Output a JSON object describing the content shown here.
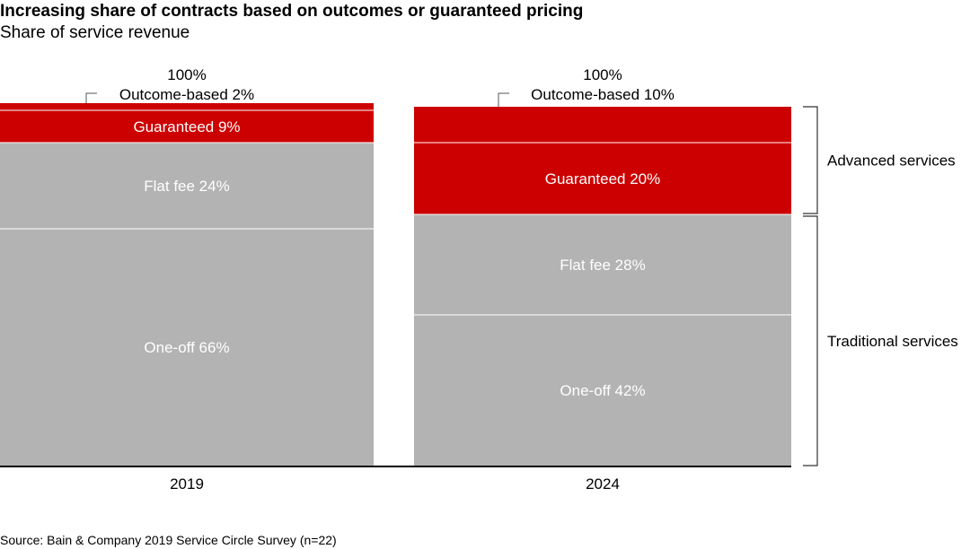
{
  "title": "Increasing share of contracts based on outcomes or guaranteed pricing",
  "subtitle": "Share of service revenue",
  "source": "Source: Bain & Company 2019 Service Circle Survey (n=22)",
  "colors": {
    "red": "#cc0000",
    "gray": "#b3b3b3",
    "separator": "#ffffff",
    "axis": "#000000"
  },
  "chart_data": {
    "type": "bar",
    "stacked": true,
    "categories": [
      "2019",
      "2024"
    ],
    "totals": [
      "100%",
      "100%"
    ],
    "ylim": [
      0,
      100
    ],
    "series": [
      {
        "name": "One-off",
        "color": "#b3b3b3",
        "values": [
          66,
          42
        ],
        "labels": [
          "One-off 66%",
          "One-off 42%"
        ]
      },
      {
        "name": "Flat fee",
        "color": "#b3b3b3",
        "values": [
          24,
          28
        ],
        "labels": [
          "Flat fee 24%",
          "Flat fee 28%"
        ]
      },
      {
        "name": "Guaranteed",
        "color": "#cc0000",
        "values": [
          9,
          20
        ],
        "labels": [
          "Guaranteed 9%",
          "Guaranteed 20%"
        ]
      },
      {
        "name": "Outcome-based",
        "color": "#cc0000",
        "values": [
          2,
          10
        ],
        "labels": [
          "Outcome-based 2%",
          "Outcome-based 10%"
        ]
      }
    ],
    "groups": [
      {
        "label": "Advanced services",
        "series": [
          "Guaranteed",
          "Outcome-based"
        ]
      },
      {
        "label": "Traditional services",
        "series": [
          "One-off",
          "Flat fee"
        ]
      }
    ]
  }
}
